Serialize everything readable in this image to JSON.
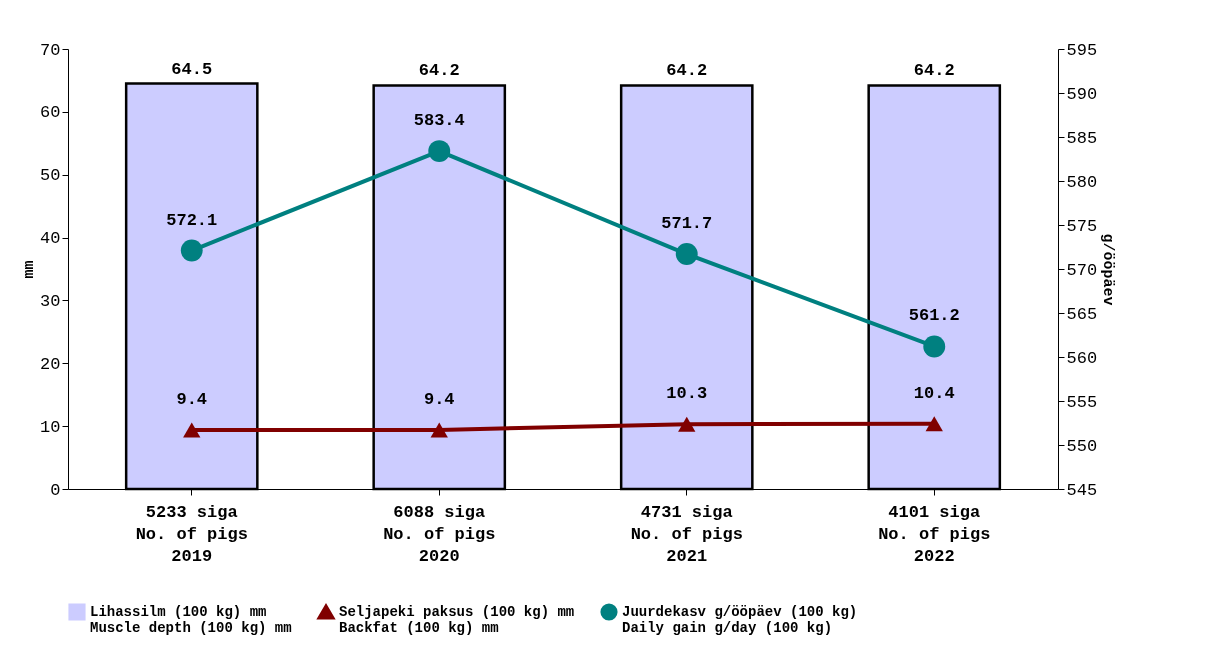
{
  "chart_data": {
    "type": "bar",
    "categories": [
      "5233 siga\nNo. of pigs\n2019",
      "6088 siga\nNo. of pigs\n2020",
      "4731 siga\nNo. of pigs\n2021",
      "4101 siga\nNo. of pigs\n2022"
    ],
    "ylabel": "mm",
    "y2label": "g/ööpäev",
    "ylim": [
      0,
      70
    ],
    "yticks": [
      0,
      10,
      20,
      30,
      40,
      50,
      60,
      70
    ],
    "y2lim": [
      545,
      595
    ],
    "y2ticks": [
      545,
      550,
      555,
      560,
      565,
      570,
      575,
      580,
      585,
      590,
      595
    ],
    "grid": false,
    "legend": "bottom",
    "data_labels": true,
    "series": [
      {
        "name": "Lihassilm (100 kg) mm\nMuscle depth (100 kg) mm",
        "color": "#ccccff",
        "values": [
          64.5,
          64.2,
          64.2,
          64.2
        ]
      },
      {
        "name": "Seljapeki paksus (100 kg) mm\nBackfat (100 kg) mm",
        "type": "line",
        "marker": "triangle",
        "color": "#800000",
        "values": [
          9.4,
          9.4,
          10.3,
          10.4
        ]
      },
      {
        "name": "Juurdekasv g/ööpäev (100 kg)\nDaily gain g/day (100 kg)",
        "type": "line",
        "axis": "y2",
        "marker": "circle",
        "color": "#008080",
        "values": [
          572.1,
          583.4,
          571.7,
          561.2
        ]
      }
    ]
  }
}
